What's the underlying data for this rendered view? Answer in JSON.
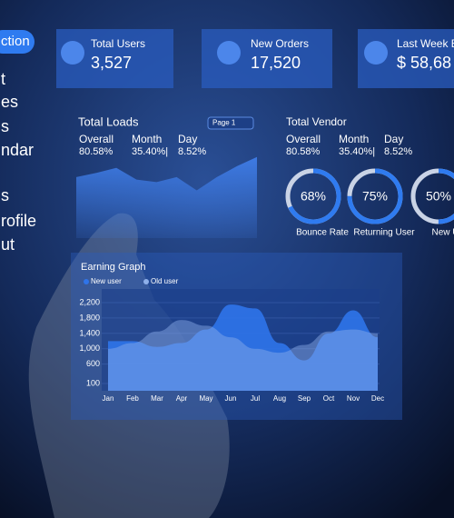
{
  "sidebar": {
    "items": [
      "ction",
      "t",
      "es",
      "s",
      "ndar",
      "s",
      "rofile",
      "ut"
    ]
  },
  "stats": [
    {
      "label": "Total Users",
      "value": "3,527"
    },
    {
      "label": "New Orders",
      "value": "17,520"
    },
    {
      "label": "Last Week E",
      "value": "$ 58,68"
    }
  ],
  "total_loads": {
    "title": "Total Loads",
    "page_select": "Page 1",
    "metrics": [
      {
        "label": "Overall",
        "value": "80.58%"
      },
      {
        "label": "Month",
        "value": "35.40%|"
      },
      {
        "label": "Day",
        "value": "8.52%"
      }
    ]
  },
  "total_vendor": {
    "title": "Total Vendor",
    "metrics": [
      {
        "label": "Overall",
        "value": "80.58%"
      },
      {
        "label": "Month",
        "value": "35.40%|"
      },
      {
        "label": "Day",
        "value": "8.52%"
      }
    ]
  },
  "chart_data": [
    {
      "type": "area",
      "values": [
        73,
        78,
        84,
        70,
        67,
        73,
        57,
        73,
        86,
        97
      ],
      "ylim": [
        0,
        100
      ],
      "color": "#3f7de8"
    },
    {
      "type": "gauge",
      "categories": [
        "Bounce Rate",
        "Returning User",
        "New Us"
      ],
      "values": [
        68,
        75,
        50
      ],
      "value_labels": [
        "68%",
        "75%",
        "50%"
      ],
      "color": "#2f7bf0"
    },
    {
      "type": "area",
      "title": "Earning Graph",
      "categories": [
        "Jan",
        "Feb",
        "Mar",
        "Apr",
        "May",
        "Jun",
        "Jul",
        "Aug",
        "Sep",
        "Oct",
        "Nov",
        "Dec"
      ],
      "series": [
        {
          "name": "New user",
          "color": "#2f74ea",
          "values": [
            1200,
            1200,
            1050,
            1150,
            1500,
            2150,
            2050,
            1150,
            700,
            1400,
            2000,
            1300
          ]
        },
        {
          "name": "Old user",
          "color": "#8fb0ea",
          "values": [
            1000,
            1150,
            1450,
            1750,
            1600,
            1300,
            1000,
            900,
            1100,
            1450,
            1500,
            1400
          ]
        }
      ],
      "ylim": [
        100,
        2200
      ],
      "yticks": [
        100,
        600,
        {
          "value": 1000,
          "label": "1,000"
        },
        {
          "value": 1400,
          "label": "1,400"
        },
        {
          "value": 1800,
          "label": "1,800"
        },
        {
          "value": 2200,
          "label": "2,200"
        }
      ]
    }
  ]
}
